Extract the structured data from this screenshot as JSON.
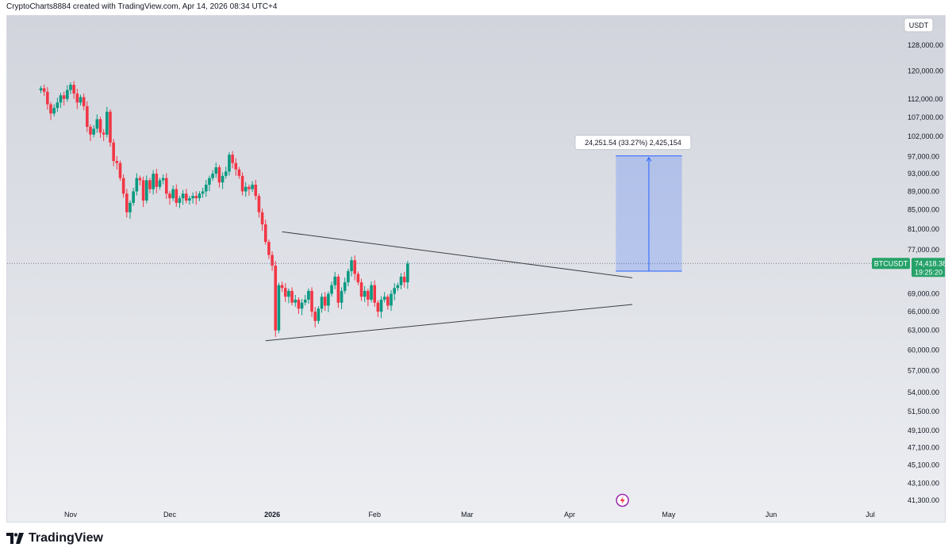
{
  "header": {
    "text": "CryptoCharts8884 created with TradingView.com, Apr 14, 2026 08:34 UTC+4"
  },
  "footer": {
    "brand": "TradingView"
  },
  "colors": {
    "up": "#089981",
    "down": "#f23645",
    "measure": "#2962ff",
    "price_tag": "#26a269"
  },
  "chart_data": {
    "type": "candlestick",
    "currency_label": "USDT",
    "symbol": "BTCUSDT",
    "last_price": "74,418.38",
    "countdown": "19:25:20",
    "y_scale": "log",
    "y_ticks": [
      "128,000.00",
      "120,000.00",
      "112,000.00",
      "107,000.00",
      "102,000.00",
      "97,000.00",
      "93,000.00",
      "89,000.00",
      "85,000.00",
      "81,000.00",
      "77,000.00",
      "69,000.00",
      "66,000.00",
      "63,000.00",
      "60,000.00",
      "57,000.00",
      "54,000.00",
      "51,500.00",
      "49,100.00",
      "47,100.00",
      "45,100.00",
      "43,100.00",
      "41,300.00"
    ],
    "x_labels": [
      "Nov",
      "Dec",
      "2026",
      "Feb",
      "Mar",
      "Apr",
      "May",
      "Jun",
      "Jul"
    ],
    "measure_label": "24,251.54 (33.27%) 2,425,154",
    "measure_range": [
      73000,
      97200
    ],
    "trendlines": [
      {
        "name": "descending-resistance",
        "from": [
          "2026-01-04",
          80500
        ],
        "to": [
          "2026-04-20",
          71800
        ]
      },
      {
        "name": "ascending-support",
        "from": [
          "2025-12-30",
          61400
        ],
        "to": [
          "2026-04-20",
          67200
        ]
      }
    ],
    "closes": [
      115000,
      114000,
      110500,
      108000,
      109500,
      111000,
      113000,
      112000,
      114500,
      116000,
      113500,
      111000,
      112500,
      110000,
      104500,
      102500,
      104000,
      106500,
      103000,
      102500,
      108500,
      100500,
      96000,
      95500,
      92000,
      88500,
      84500,
      86500,
      89000,
      92000,
      91500,
      87000,
      91500,
      89500,
      93000,
      90000,
      91500,
      92000,
      88500,
      87500,
      89500,
      86500,
      87500,
      88500,
      87000,
      87500,
      88000,
      87500,
      88500,
      89000,
      90500,
      92000,
      93000,
      94500,
      91000,
      92500,
      93500,
      97500,
      95500,
      94000,
      92500,
      89000,
      90000,
      89500,
      90500,
      88000,
      84500,
      82000,
      78500,
      76000,
      74000,
      63000,
      70500,
      70000,
      68500,
      69500,
      67500,
      68000,
      66500,
      67500,
      68000,
      69500,
      66000,
      64500,
      66500,
      68500,
      67000,
      69000,
      70500,
      72000,
      67500,
      69500,
      71000,
      73000,
      75000,
      72500,
      71000,
      68500,
      69500,
      68000,
      70500,
      67500,
      66000,
      68000,
      68500,
      67000,
      69000,
      70000,
      70500,
      72000,
      71000,
      74418
    ]
  }
}
